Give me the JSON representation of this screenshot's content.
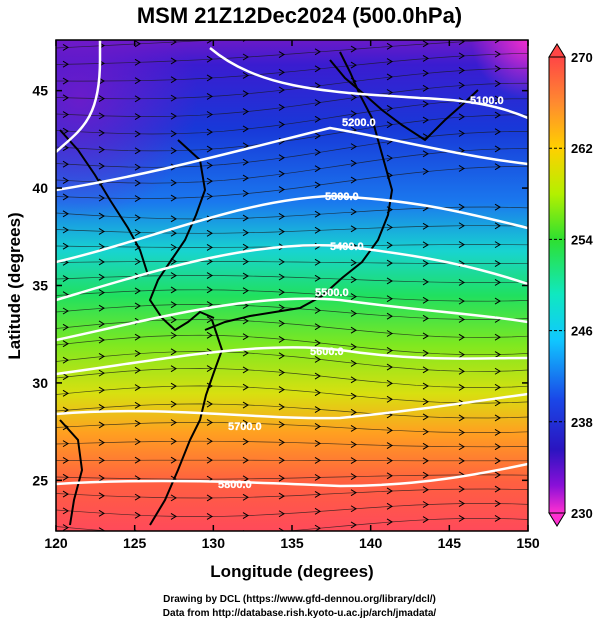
{
  "title": "MSM 21Z12Dec2024 (500.0hPa)",
  "map": {
    "x_axis": {
      "label": "Longitude (degrees)",
      "range": [
        120,
        150
      ],
      "ticks": [
        "120",
        "125",
        "130",
        "135",
        "140",
        "145",
        "150"
      ]
    },
    "y_axis": {
      "label": "Latitude  (degrees)",
      "range": [
        22.4,
        47.6
      ],
      "ticks": [
        "25",
        "30",
        "35",
        "40",
        "45"
      ]
    },
    "field_color_scale": "temperature shading (purple/blue cold north, green middle, red/orange warm south)",
    "wind_vectors": "westerly streamline arrows across domain",
    "contours": [
      {
        "label": "5100.0"
      },
      {
        "label": "5200.0"
      },
      {
        "label": "5300.0"
      },
      {
        "label": "5400.0"
      },
      {
        "label": "5500.0"
      },
      {
        "label": "5600.0"
      },
      {
        "label": "5700.0"
      },
      {
        "label": "5800.0"
      }
    ]
  },
  "colorbar": {
    "range": [
      230,
      270
    ],
    "ticks": [
      "270",
      "262",
      "254",
      "246",
      "238",
      "230"
    ],
    "colors": [
      "#ff4646",
      "#ff8a30",
      "#ffd000",
      "#b4f000",
      "#2ee030",
      "#10e8c0",
      "#10c8ff",
      "#1a48e8",
      "#2a14c0",
      "#8a10d8",
      "#ff30d0"
    ]
  },
  "credits": {
    "line1": "Drawing by DCL (https://www.gfd-dennou.org/library/dcl/)",
    "line2": "Data from http://database.rish.kyoto-u.ac.jp/arch/jmadata/"
  }
}
